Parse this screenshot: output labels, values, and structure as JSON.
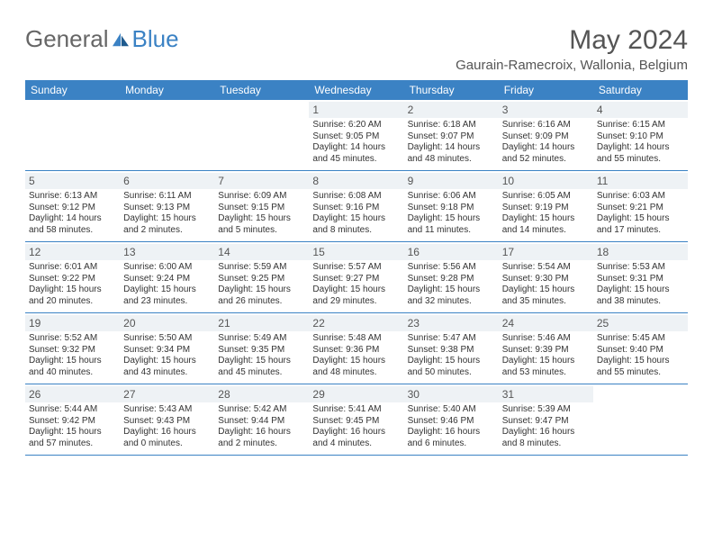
{
  "logo": {
    "text1": "General",
    "text2": "Blue"
  },
  "title": "May 2024",
  "location": "Gaurain-Ramecroix, Wallonia, Belgium",
  "colors": {
    "header_bg": "#3b82c4",
    "header_text": "#ffffff",
    "daynum_bg": "#eef2f5",
    "text": "#333333",
    "divider": "#3b82c4"
  },
  "dayNames": [
    "Sunday",
    "Monday",
    "Tuesday",
    "Wednesday",
    "Thursday",
    "Friday",
    "Saturday"
  ],
  "weeks": [
    [
      null,
      null,
      null,
      {
        "n": "1",
        "sr": "6:20 AM",
        "ss": "9:05 PM",
        "dl": "14 hours and 45 minutes."
      },
      {
        "n": "2",
        "sr": "6:18 AM",
        "ss": "9:07 PM",
        "dl": "14 hours and 48 minutes."
      },
      {
        "n": "3",
        "sr": "6:16 AM",
        "ss": "9:09 PM",
        "dl": "14 hours and 52 minutes."
      },
      {
        "n": "4",
        "sr": "6:15 AM",
        "ss": "9:10 PM",
        "dl": "14 hours and 55 minutes."
      }
    ],
    [
      {
        "n": "5",
        "sr": "6:13 AM",
        "ss": "9:12 PM",
        "dl": "14 hours and 58 minutes."
      },
      {
        "n": "6",
        "sr": "6:11 AM",
        "ss": "9:13 PM",
        "dl": "15 hours and 2 minutes."
      },
      {
        "n": "7",
        "sr": "6:09 AM",
        "ss": "9:15 PM",
        "dl": "15 hours and 5 minutes."
      },
      {
        "n": "8",
        "sr": "6:08 AM",
        "ss": "9:16 PM",
        "dl": "15 hours and 8 minutes."
      },
      {
        "n": "9",
        "sr": "6:06 AM",
        "ss": "9:18 PM",
        "dl": "15 hours and 11 minutes."
      },
      {
        "n": "10",
        "sr": "6:05 AM",
        "ss": "9:19 PM",
        "dl": "15 hours and 14 minutes."
      },
      {
        "n": "11",
        "sr": "6:03 AM",
        "ss": "9:21 PM",
        "dl": "15 hours and 17 minutes."
      }
    ],
    [
      {
        "n": "12",
        "sr": "6:01 AM",
        "ss": "9:22 PM",
        "dl": "15 hours and 20 minutes."
      },
      {
        "n": "13",
        "sr": "6:00 AM",
        "ss": "9:24 PM",
        "dl": "15 hours and 23 minutes."
      },
      {
        "n": "14",
        "sr": "5:59 AM",
        "ss": "9:25 PM",
        "dl": "15 hours and 26 minutes."
      },
      {
        "n": "15",
        "sr": "5:57 AM",
        "ss": "9:27 PM",
        "dl": "15 hours and 29 minutes."
      },
      {
        "n": "16",
        "sr": "5:56 AM",
        "ss": "9:28 PM",
        "dl": "15 hours and 32 minutes."
      },
      {
        "n": "17",
        "sr": "5:54 AM",
        "ss": "9:30 PM",
        "dl": "15 hours and 35 minutes."
      },
      {
        "n": "18",
        "sr": "5:53 AM",
        "ss": "9:31 PM",
        "dl": "15 hours and 38 minutes."
      }
    ],
    [
      {
        "n": "19",
        "sr": "5:52 AM",
        "ss": "9:32 PM",
        "dl": "15 hours and 40 minutes."
      },
      {
        "n": "20",
        "sr": "5:50 AM",
        "ss": "9:34 PM",
        "dl": "15 hours and 43 minutes."
      },
      {
        "n": "21",
        "sr": "5:49 AM",
        "ss": "9:35 PM",
        "dl": "15 hours and 45 minutes."
      },
      {
        "n": "22",
        "sr": "5:48 AM",
        "ss": "9:36 PM",
        "dl": "15 hours and 48 minutes."
      },
      {
        "n": "23",
        "sr": "5:47 AM",
        "ss": "9:38 PM",
        "dl": "15 hours and 50 minutes."
      },
      {
        "n": "24",
        "sr": "5:46 AM",
        "ss": "9:39 PM",
        "dl": "15 hours and 53 minutes."
      },
      {
        "n": "25",
        "sr": "5:45 AM",
        "ss": "9:40 PM",
        "dl": "15 hours and 55 minutes."
      }
    ],
    [
      {
        "n": "26",
        "sr": "5:44 AM",
        "ss": "9:42 PM",
        "dl": "15 hours and 57 minutes."
      },
      {
        "n": "27",
        "sr": "5:43 AM",
        "ss": "9:43 PM",
        "dl": "16 hours and 0 minutes."
      },
      {
        "n": "28",
        "sr": "5:42 AM",
        "ss": "9:44 PM",
        "dl": "16 hours and 2 minutes."
      },
      {
        "n": "29",
        "sr": "5:41 AM",
        "ss": "9:45 PM",
        "dl": "16 hours and 4 minutes."
      },
      {
        "n": "30",
        "sr": "5:40 AM",
        "ss": "9:46 PM",
        "dl": "16 hours and 6 minutes."
      },
      {
        "n": "31",
        "sr": "5:39 AM",
        "ss": "9:47 PM",
        "dl": "16 hours and 8 minutes."
      },
      null
    ]
  ]
}
